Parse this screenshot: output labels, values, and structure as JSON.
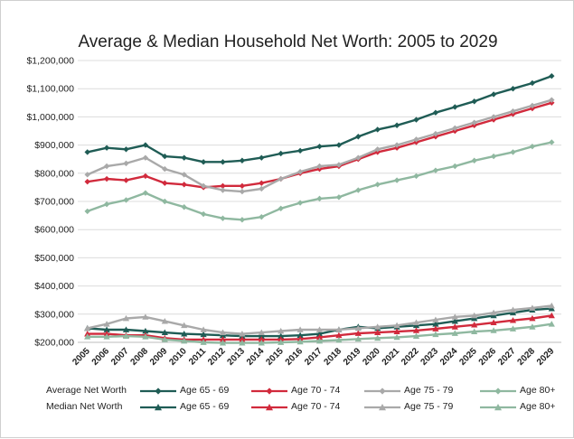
{
  "chart_data": {
    "type": "line",
    "title": "Average & Median Household Net Worth:  2005 to 2029",
    "x": [
      2005,
      2006,
      2007,
      2008,
      2009,
      2010,
      2011,
      2012,
      2013,
      2014,
      2015,
      2016,
      2017,
      2018,
      2019,
      2020,
      2021,
      2022,
      2023,
      2024,
      2025,
      2026,
      2027,
      2028,
      2029
    ],
    "ylim": [
      200000,
      1200000
    ],
    "y_ticks": [
      "$200,000",
      "$300,000",
      "$400,000",
      "$500,000",
      "$600,000",
      "$700,000",
      "$800,000",
      "$900,000",
      "$1,000,000",
      "$1,100,000",
      "$1,200,000"
    ],
    "grid": true,
    "legend_position": "bottom",
    "legend_rows": [
      "Average Net Worth",
      "Median Net Worth"
    ],
    "series": [
      {
        "name": "Age 65 - 69",
        "group": "Average Net Worth",
        "color": "#1f5c55",
        "marker": "diamond",
        "values": [
          875000,
          890000,
          885000,
          900000,
          860000,
          855000,
          840000,
          840000,
          845000,
          855000,
          870000,
          880000,
          895000,
          900000,
          930000,
          955000,
          970000,
          990000,
          1015000,
          1035000,
          1055000,
          1080000,
          1100000,
          1120000,
          1145000
        ]
      },
      {
        "name": "Age 70 - 74",
        "group": "Average Net Worth",
        "color": "#d12a3c",
        "marker": "diamond",
        "values": [
          770000,
          780000,
          775000,
          790000,
          765000,
          760000,
          750000,
          755000,
          755000,
          765000,
          780000,
          800000,
          815000,
          825000,
          850000,
          875000,
          890000,
          910000,
          930000,
          950000,
          970000,
          990000,
          1010000,
          1030000,
          1050000
        ]
      },
      {
        "name": "Age 75 - 79",
        "group": "Average Net Worth",
        "color": "#a9a9a9",
        "marker": "diamond",
        "values": [
          795000,
          825000,
          835000,
          855000,
          815000,
          795000,
          755000,
          740000,
          735000,
          745000,
          780000,
          805000,
          825000,
          830000,
          855000,
          885000,
          900000,
          920000,
          940000,
          960000,
          980000,
          1000000,
          1020000,
          1040000,
          1060000
        ]
      },
      {
        "name": "Age 80+",
        "group": "Average Net Worth",
        "color": "#8fb8a0",
        "marker": "diamond",
        "values": [
          665000,
          690000,
          705000,
          730000,
          700000,
          680000,
          655000,
          640000,
          635000,
          645000,
          675000,
          695000,
          710000,
          715000,
          740000,
          760000,
          775000,
          790000,
          810000,
          825000,
          845000,
          860000,
          875000,
          895000,
          910000
        ]
      },
      {
        "name": "Age 65 - 69",
        "group": "Median Net Worth",
        "color": "#1f5c55",
        "marker": "triangle",
        "values": [
          250000,
          245000,
          245000,
          240000,
          235000,
          230000,
          228000,
          225000,
          222000,
          222000,
          222000,
          225000,
          230000,
          245000,
          255000,
          250000,
          255000,
          260000,
          265000,
          275000,
          285000,
          295000,
          305000,
          315000,
          320000
        ]
      },
      {
        "name": "Age 70 - 74",
        "group": "Median Net Worth",
        "color": "#d12a3c",
        "marker": "triangle",
        "values": [
          230000,
          230000,
          225000,
          225000,
          215000,
          210000,
          210000,
          210000,
          210000,
          210000,
          210000,
          212000,
          218000,
          225000,
          232000,
          235000,
          238000,
          242000,
          248000,
          255000,
          262000,
          270000,
          278000,
          285000,
          295000
        ]
      },
      {
        "name": "Age 75 - 79",
        "group": "Median Net Worth",
        "color": "#a9a9a9",
        "marker": "triangle",
        "values": [
          250000,
          265000,
          285000,
          290000,
          275000,
          260000,
          245000,
          235000,
          230000,
          235000,
          240000,
          245000,
          245000,
          245000,
          250000,
          255000,
          260000,
          270000,
          280000,
          290000,
          295000,
          305000,
          315000,
          322000,
          330000
        ]
      },
      {
        "name": "Age 80+",
        "group": "Median Net Worth",
        "color": "#8fb8a0",
        "marker": "triangle",
        "values": [
          220000,
          220000,
          222000,
          220000,
          210000,
          205000,
          200000,
          198000,
          198000,
          198000,
          200000,
          202000,
          205000,
          208000,
          212000,
          215000,
          218000,
          222000,
          228000,
          232000,
          238000,
          242000,
          248000,
          255000,
          265000
        ]
      }
    ]
  }
}
